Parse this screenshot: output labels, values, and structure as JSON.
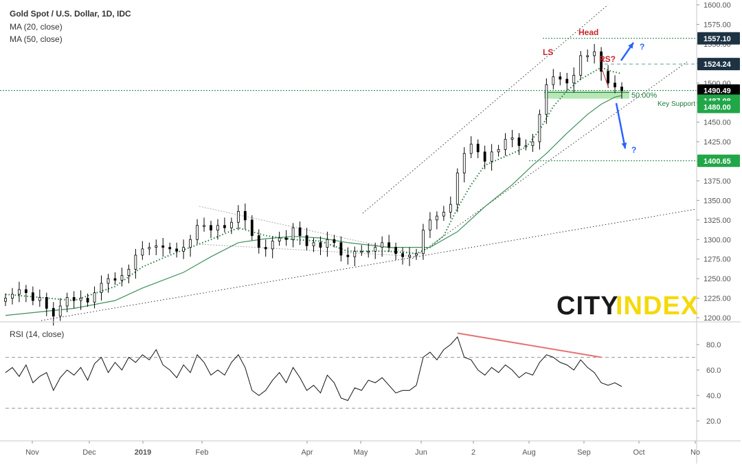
{
  "header": {
    "title": "Gold Spot / U.S. Dollar, 1D, IDC",
    "ma20": "MA (20, close)",
    "ma50": "MA (50, close)",
    "rsi": "RSI (14, close)"
  },
  "colors": {
    "up": "#ffffff",
    "down": "#000000",
    "ma20": "#1e7a3c",
    "ma50": "#3d8f5a",
    "annot_red": "#c4262e",
    "arrow_blue": "#2962ff",
    "support_fill": "#9ee09e",
    "badge_dark": "#1d3344",
    "badge_green": "#21a648",
    "rsi_div": "#e57373",
    "brand_yellow": "#f5d90a"
  },
  "brand": {
    "city": "CITY",
    "index": "INDEX"
  },
  "chart_data": [
    {
      "type": "candlestick",
      "title": "Gold Spot / U.S. Dollar, 1D, IDC",
      "ylim": [
        1200,
        1600
      ],
      "yticks": [
        1200,
        1225,
        1250,
        1275,
        1300,
        1325,
        1350,
        1375,
        1400,
        1425,
        1450,
        1475,
        1500,
        1525,
        1550,
        1575,
        1600
      ],
      "ytick_labels": [
        "1200.00",
        "1225.00",
        "1250.00",
        "1275.00",
        "1300.00",
        "1325.00",
        "1350.00",
        "1375.00",
        "1400.00",
        "1425.00",
        "1450.00",
        "1475.00",
        "1500.00",
        "1525.00",
        "1550.00",
        "1575.00",
        "1600.00"
      ],
      "xticks": [
        "Nov",
        "Dec",
        "2019",
        "Feb",
        "Apr",
        "May",
        "Jun",
        "2",
        "Aug",
        "Sep",
        "Oct",
        "No"
      ],
      "series_close": [
        [
          0,
          1225
        ],
        [
          10,
          1230
        ],
        [
          20,
          1236
        ],
        [
          30,
          1232
        ],
        [
          40,
          1222
        ],
        [
          50,
          1226
        ],
        [
          60,
          1212
        ],
        [
          70,
          1202
        ],
        [
          80,
          1215
        ],
        [
          90,
          1226
        ],
        [
          100,
          1222
        ],
        [
          110,
          1225
        ],
        [
          120,
          1220
        ],
        [
          130,
          1232
        ],
        [
          140,
          1244
        ],
        [
          150,
          1250
        ],
        [
          160,
          1248
        ],
        [
          170,
          1254
        ],
        [
          180,
          1262
        ],
        [
          190,
          1280
        ],
        [
          200,
          1288
        ],
        [
          210,
          1290
        ],
        [
          220,
          1292
        ],
        [
          230,
          1290
        ],
        [
          240,
          1288
        ],
        [
          250,
          1285
        ],
        [
          260,
          1290
        ],
        [
          270,
          1300
        ],
        [
          280,
          1318
        ],
        [
          290,
          1318
        ],
        [
          300,
          1312
        ],
        [
          310,
          1318
        ],
        [
          320,
          1315
        ],
        [
          330,
          1322
        ],
        [
          340,
          1336
        ],
        [
          350,
          1325
        ],
        [
          360,
          1305
        ],
        [
          370,
          1290
        ],
        [
          380,
          1288
        ],
        [
          390,
          1298
        ],
        [
          400,
          1302
        ],
        [
          410,
          1300
        ],
        [
          420,
          1315
        ],
        [
          430,
          1305
        ],
        [
          440,
          1292
        ],
        [
          450,
          1296
        ],
        [
          460,
          1290
        ],
        [
          470,
          1300
        ],
        [
          480,
          1296
        ],
        [
          490,
          1280
        ],
        [
          500,
          1278
        ],
        [
          510,
          1285
        ],
        [
          520,
          1285
        ],
        [
          530,
          1285
        ],
        [
          540,
          1290
        ],
        [
          550,
          1296
        ],
        [
          560,
          1290
        ],
        [
          570,
          1282
        ],
        [
          580,
          1278
        ],
        [
          590,
          1280
        ],
        [
          600,
          1282
        ],
        [
          610,
          1312
        ],
        [
          620,
          1325
        ],
        [
          630,
          1330
        ],
        [
          640,
          1335
        ],
        [
          650,
          1345
        ],
        [
          660,
          1385
        ],
        [
          670,
          1410
        ],
        [
          680,
          1422
        ],
        [
          690,
          1412
        ],
        [
          700,
          1400
        ],
        [
          710,
          1412
        ],
        [
          720,
          1415
        ],
        [
          730,
          1428
        ],
        [
          740,
          1430
        ],
        [
          750,
          1420
        ],
        [
          760,
          1420
        ],
        [
          770,
          1425
        ],
        [
          780,
          1460
        ],
        [
          790,
          1498
        ],
        [
          800,
          1508
        ],
        [
          810,
          1505
        ],
        [
          820,
          1500
        ],
        [
          830,
          1510
        ],
        [
          840,
          1535
        ],
        [
          850,
          1535
        ],
        [
          860,
          1540
        ],
        [
          870,
          1515
        ],
        [
          880,
          1500
        ],
        [
          890,
          1495
        ],
        [
          900,
          1490
        ]
      ],
      "ma20_close": [
        [
          0,
          1230
        ],
        [
          100,
          1222
        ],
        [
          160,
          1240
        ],
        [
          200,
          1265
        ],
        [
          240,
          1280
        ],
        [
          300,
          1300
        ],
        [
          340,
          1315
        ],
        [
          380,
          1305
        ],
        [
          420,
          1300
        ],
        [
          460,
          1298
        ],
        [
          500,
          1285
        ],
        [
          560,
          1285
        ],
        [
          600,
          1282
        ],
        [
          620,
          1290
        ],
        [
          640,
          1305
        ],
        [
          660,
          1340
        ],
        [
          680,
          1370
        ],
        [
          700,
          1395
        ],
        [
          740,
          1410
        ],
        [
          760,
          1418
        ],
        [
          780,
          1440
        ],
        [
          800,
          1470
        ],
        [
          820,
          1490
        ],
        [
          840,
          1505
        ],
        [
          870,
          1520
        ],
        [
          885,
          1515
        ],
        [
          900,
          1512
        ]
      ],
      "ma50_close": [
        [
          0,
          1203
        ],
        [
          100,
          1212
        ],
        [
          160,
          1222
        ],
        [
          200,
          1238
        ],
        [
          260,
          1258
        ],
        [
          300,
          1278
        ],
        [
          340,
          1296
        ],
        [
          380,
          1301
        ],
        [
          420,
          1304
        ],
        [
          460,
          1302
        ],
        [
          500,
          1296
        ],
        [
          560,
          1290
        ],
        [
          600,
          1290
        ],
        [
          620,
          1290
        ],
        [
          660,
          1310
        ],
        [
          700,
          1342
        ],
        [
          740,
          1370
        ],
        [
          770,
          1395
        ],
        [
          790,
          1410
        ],
        [
          820,
          1436
        ],
        [
          850,
          1460
        ],
        [
          870,
          1473
        ],
        [
          890,
          1482
        ],
        [
          900,
          1484
        ]
      ],
      "price_levels": [
        {
          "label": "1557.10",
          "value": 1557.1,
          "style": "dark"
        },
        {
          "label": "1524.24",
          "value": 1524.24,
          "style": "dark"
        },
        {
          "label": "1490.49",
          "value": 1490.49,
          "style": "black"
        },
        {
          "label": "1487.98",
          "value": 1487.98,
          "style": "green"
        },
        {
          "label": "1480.00",
          "value": 1480.0,
          "style": "green"
        },
        {
          "label": "1400.65",
          "value": 1400.65,
          "style": "green"
        }
      ],
      "annotations": {
        "head": "Head",
        "ls": "LS",
        "rs": "RS?",
        "fib": "50.00%",
        "support": "Key Support",
        "q_up": "?",
        "q_down": "?"
      }
    },
    {
      "type": "line",
      "title": "RSI (14, close)",
      "ylim": [
        0,
        100
      ],
      "yticks": [
        20,
        40,
        60,
        80
      ],
      "ytick_labels": [
        "20.0",
        "40.0",
        "60.0",
        "80.0"
      ],
      "levels": [
        30,
        70
      ],
      "values": [
        [
          0,
          58
        ],
        [
          10,
          62
        ],
        [
          20,
          55
        ],
        [
          30,
          64
        ],
        [
          40,
          50
        ],
        [
          50,
          55
        ],
        [
          60,
          58
        ],
        [
          70,
          44
        ],
        [
          80,
          54
        ],
        [
          90,
          60
        ],
        [
          100,
          56
        ],
        [
          110,
          62
        ],
        [
          120,
          52
        ],
        [
          130,
          65
        ],
        [
          140,
          70
        ],
        [
          150,
          58
        ],
        [
          160,
          66
        ],
        [
          170,
          60
        ],
        [
          180,
          70
        ],
        [
          190,
          66
        ],
        [
          200,
          72
        ],
        [
          210,
          68
        ],
        [
          220,
          76
        ],
        [
          230,
          64
        ],
        [
          240,
          60
        ],
        [
          250,
          54
        ],
        [
          260,
          64
        ],
        [
          270,
          58
        ],
        [
          280,
          72
        ],
        [
          290,
          66
        ],
        [
          300,
          56
        ],
        [
          310,
          60
        ],
        [
          320,
          56
        ],
        [
          330,
          66
        ],
        [
          340,
          72
        ],
        [
          350,
          62
        ],
        [
          360,
          44
        ],
        [
          370,
          40
        ],
        [
          380,
          44
        ],
        [
          390,
          52
        ],
        [
          400,
          58
        ],
        [
          410,
          50
        ],
        [
          420,
          62
        ],
        [
          430,
          54
        ],
        [
          440,
          44
        ],
        [
          450,
          48
        ],
        [
          460,
          42
        ],
        [
          470,
          56
        ],
        [
          480,
          50
        ],
        [
          490,
          38
        ],
        [
          500,
          36
        ],
        [
          510,
          46
        ],
        [
          520,
          44
        ],
        [
          530,
          52
        ],
        [
          540,
          50
        ],
        [
          550,
          54
        ],
        [
          560,
          48
        ],
        [
          570,
          42
        ],
        [
          580,
          44
        ],
        [
          590,
          44
        ],
        [
          600,
          48
        ],
        [
          610,
          70
        ],
        [
          620,
          74
        ],
        [
          630,
          68
        ],
        [
          640,
          76
        ],
        [
          650,
          80
        ],
        [
          660,
          86
        ],
        [
          670,
          70
        ],
        [
          680,
          68
        ],
        [
          690,
          60
        ],
        [
          700,
          56
        ],
        [
          710,
          62
        ],
        [
          720,
          58
        ],
        [
          730,
          64
        ],
        [
          740,
          60
        ],
        [
          750,
          54
        ],
        [
          760,
          58
        ],
        [
          770,
          56
        ],
        [
          780,
          66
        ],
        [
          790,
          72
        ],
        [
          800,
          70
        ],
        [
          810,
          66
        ],
        [
          820,
          64
        ],
        [
          830,
          60
        ],
        [
          840,
          68
        ],
        [
          850,
          62
        ],
        [
          860,
          58
        ],
        [
          870,
          50
        ],
        [
          880,
          48
        ],
        [
          890,
          50
        ],
        [
          900,
          47
        ]
      ],
      "divergence": [
        [
          660,
          89
        ],
        [
          870,
          70
        ]
      ]
    }
  ]
}
